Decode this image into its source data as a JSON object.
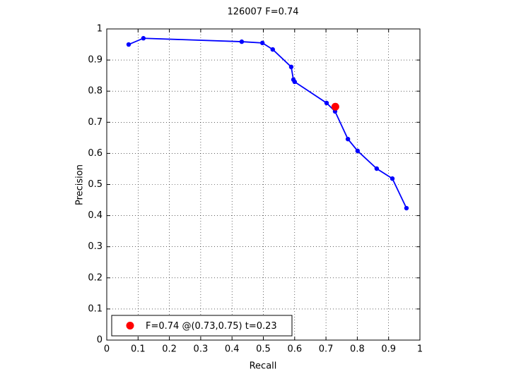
{
  "chart_data": {
    "type": "line",
    "title": "126007 F=0.74",
    "x_label": "Recall",
    "y_label": "Precision",
    "x": [
      0.07,
      0.117,
      0.431,
      0.497,
      0.53,
      0.589,
      0.596,
      0.6,
      0.702,
      0.729,
      0.77,
      0.801,
      0.862,
      0.912,
      0.957
    ],
    "series": [
      {
        "color": "#0000ff",
        "values": [
          0.95,
          0.97,
          0.959,
          0.955,
          0.934,
          0.878,
          0.837,
          0.83,
          0.762,
          0.735,
          0.646,
          0.608,
          0.551,
          0.519,
          0.424
        ]
      }
    ],
    "best": {
      "x": 0.73,
      "y": 0.75,
      "color": "#ff0000",
      "label": "F=0.74 @(0.73,0.75) t=0.23"
    },
    "xlim": [
      0,
      1
    ],
    "ylim": [
      0,
      1
    ],
    "xticks": [
      0,
      0.1,
      0.2,
      0.3,
      0.4,
      0.5,
      0.6,
      0.7,
      0.8,
      0.9,
      1
    ],
    "yticks": [
      0,
      0.1,
      0.2,
      0.3,
      0.4,
      0.5,
      0.6,
      0.7,
      0.8,
      0.9,
      1
    ],
    "grid": true,
    "legend_position": "lower left"
  }
}
